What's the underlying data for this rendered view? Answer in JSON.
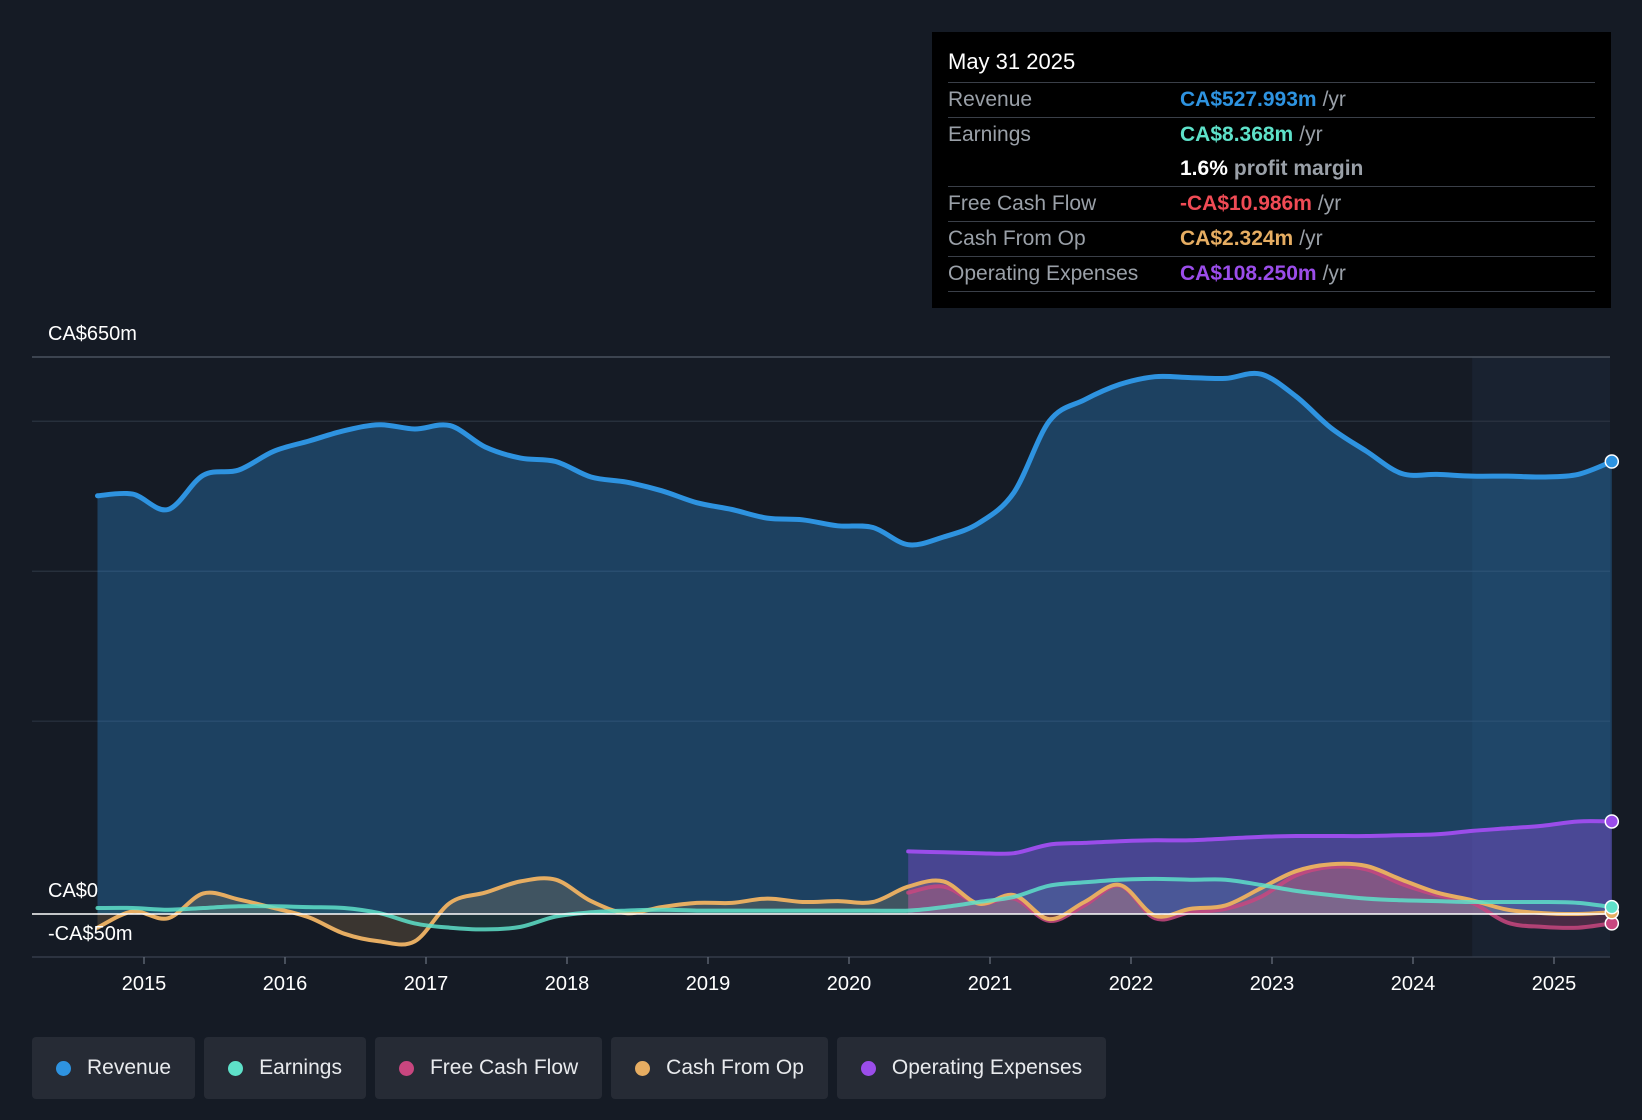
{
  "colors": {
    "revenue": "#2e93e0",
    "earnings": "#5ee1c9",
    "free_cash_flow": "#c8467f",
    "cash_from_op": "#e6ad62",
    "operating_expenses": "#9b4dea",
    "profit_margin_value": "#ffffff",
    "fcf_negative": "#f04b55"
  },
  "tooltip": {
    "date": "May 31 2025",
    "rows": [
      {
        "label": "Revenue",
        "value": "CA$527.993m",
        "unit": "/yr"
      },
      {
        "label": "Earnings",
        "value": "CA$8.368m",
        "unit": "/yr"
      },
      {
        "label": "",
        "value": "1.6%",
        "unit": "profit margin"
      },
      {
        "label": "Free Cash Flow",
        "value": "-CA$10.986m",
        "unit": "/yr"
      },
      {
        "label": "Cash From Op",
        "value": "CA$2.324m",
        "unit": "/yr"
      },
      {
        "label": "Operating Expenses",
        "value": "CA$108.250m",
        "unit": "/yr"
      }
    ]
  },
  "legend": [
    {
      "label": "Revenue"
    },
    {
      "label": "Earnings"
    },
    {
      "label": "Free Cash Flow"
    },
    {
      "label": "Cash From Op"
    },
    {
      "label": "Operating Expenses"
    }
  ],
  "chart_data": {
    "type": "area",
    "title": "",
    "y_top_label": "CA$650m",
    "y_zero_label": "CA$0",
    "y_bottom_label": "-CA$50m",
    "ylim": [
      -50,
      650
    ],
    "xlim": [
      2014.35,
      2025.4
    ],
    "forecast_start": 2024.42,
    "x_ticks": [
      2015,
      2016,
      2017,
      2018,
      2019,
      2020,
      2021,
      2022,
      2023,
      2024,
      2025
    ],
    "x_tick_labels": [
      "2015",
      "2016",
      "2017",
      "2018",
      "2019",
      "2020",
      "2021",
      "2022",
      "2023",
      "2024",
      "2025"
    ],
    "series": [
      {
        "name": "Revenue",
        "points": [
          [
            2014.67,
            488
          ],
          [
            2014.92,
            490
          ],
          [
            2015.17,
            472
          ],
          [
            2015.42,
            512
          ],
          [
            2015.67,
            518
          ],
          [
            2015.92,
            540
          ],
          [
            2016.17,
            552
          ],
          [
            2016.42,
            564
          ],
          [
            2016.67,
            571
          ],
          [
            2016.92,
            566
          ],
          [
            2017.17,
            570
          ],
          [
            2017.42,
            545
          ],
          [
            2017.67,
            532
          ],
          [
            2017.92,
            528
          ],
          [
            2018.17,
            510
          ],
          [
            2018.42,
            504
          ],
          [
            2018.67,
            494
          ],
          [
            2018.92,
            480
          ],
          [
            2019.17,
            472
          ],
          [
            2019.42,
            462
          ],
          [
            2019.67,
            460
          ],
          [
            2019.92,
            453
          ],
          [
            2020.17,
            451
          ],
          [
            2020.42,
            431
          ],
          [
            2020.67,
            440
          ],
          [
            2020.92,
            456
          ],
          [
            2021.17,
            492
          ],
          [
            2021.42,
            575
          ],
          [
            2021.67,
            600
          ],
          [
            2021.92,
            618
          ],
          [
            2022.17,
            627
          ],
          [
            2022.42,
            626
          ],
          [
            2022.67,
            625
          ],
          [
            2022.92,
            630
          ],
          [
            2023.17,
            604
          ],
          [
            2023.42,
            567
          ],
          [
            2023.67,
            540
          ],
          [
            2023.92,
            514
          ],
          [
            2024.17,
            513
          ],
          [
            2024.42,
            511
          ],
          [
            2024.67,
            511
          ],
          [
            2024.92,
            510
          ],
          [
            2025.17,
            513
          ],
          [
            2025.41,
            528
          ]
        ]
      },
      {
        "name": "Earnings",
        "points": [
          [
            2014.67,
            7
          ],
          [
            2014.92,
            7
          ],
          [
            2015.17,
            5
          ],
          [
            2015.42,
            7
          ],
          [
            2015.67,
            9
          ],
          [
            2015.92,
            9
          ],
          [
            2016.17,
            8
          ],
          [
            2016.42,
            7
          ],
          [
            2016.67,
            1
          ],
          [
            2016.92,
            -11
          ],
          [
            2017.17,
            -16
          ],
          [
            2017.42,
            -18
          ],
          [
            2017.67,
            -15
          ],
          [
            2017.92,
            -3
          ],
          [
            2018.17,
            2
          ],
          [
            2018.42,
            4
          ],
          [
            2018.67,
            5
          ],
          [
            2018.92,
            4
          ],
          [
            2019.17,
            4
          ],
          [
            2019.42,
            4
          ],
          [
            2019.67,
            4
          ],
          [
            2019.92,
            4
          ],
          [
            2020.17,
            4
          ],
          [
            2020.42,
            4
          ],
          [
            2020.67,
            8
          ],
          [
            2020.92,
            14
          ],
          [
            2021.17,
            20
          ],
          [
            2021.42,
            33
          ],
          [
            2021.67,
            37
          ],
          [
            2021.92,
            40
          ],
          [
            2022.17,
            41
          ],
          [
            2022.42,
            40
          ],
          [
            2022.67,
            40
          ],
          [
            2022.92,
            34
          ],
          [
            2023.17,
            27
          ],
          [
            2023.42,
            22
          ],
          [
            2023.67,
            18
          ],
          [
            2023.92,
            16
          ],
          [
            2024.17,
            15
          ],
          [
            2024.42,
            14
          ],
          [
            2024.67,
            14
          ],
          [
            2024.92,
            14
          ],
          [
            2025.17,
            13
          ],
          [
            2025.41,
            8
          ]
        ]
      },
      {
        "name": "Free Cash Flow",
        "points": [
          [
            2020.42,
            25
          ],
          [
            2020.67,
            32
          ],
          [
            2020.92,
            12
          ],
          [
            2021.17,
            18
          ],
          [
            2021.42,
            -8
          ],
          [
            2021.67,
            10
          ],
          [
            2021.92,
            33
          ],
          [
            2022.17,
            -5
          ],
          [
            2022.42,
            2
          ],
          [
            2022.67,
            6
          ],
          [
            2022.92,
            20
          ],
          [
            2023.17,
            45
          ],
          [
            2023.42,
            55
          ],
          [
            2023.67,
            52
          ],
          [
            2023.92,
            35
          ],
          [
            2024.17,
            22
          ],
          [
            2024.42,
            13
          ],
          [
            2024.67,
            -10
          ],
          [
            2024.92,
            -15
          ],
          [
            2025.17,
            -16
          ],
          [
            2025.41,
            -11
          ]
        ]
      },
      {
        "name": "Cash From Op",
        "points": [
          [
            2014.67,
            -16
          ],
          [
            2014.92,
            3
          ],
          [
            2015.17,
            -5
          ],
          [
            2015.42,
            24
          ],
          [
            2015.67,
            17
          ],
          [
            2015.92,
            7
          ],
          [
            2016.17,
            -4
          ],
          [
            2016.42,
            -23
          ],
          [
            2016.67,
            -32
          ],
          [
            2016.92,
            -32
          ],
          [
            2017.17,
            13
          ],
          [
            2017.42,
            25
          ],
          [
            2017.67,
            38
          ],
          [
            2017.92,
            40
          ],
          [
            2018.17,
            15
          ],
          [
            2018.42,
            1
          ],
          [
            2018.67,
            8
          ],
          [
            2018.92,
            13
          ],
          [
            2019.17,
            13
          ],
          [
            2019.42,
            18
          ],
          [
            2019.67,
            14
          ],
          [
            2019.92,
            15
          ],
          [
            2020.17,
            14
          ],
          [
            2020.42,
            32
          ],
          [
            2020.67,
            38
          ],
          [
            2020.92,
            12
          ],
          [
            2021.17,
            22
          ],
          [
            2021.42,
            -6
          ],
          [
            2021.67,
            14
          ],
          [
            2021.92,
            34
          ],
          [
            2022.17,
            -2
          ],
          [
            2022.42,
            6
          ],
          [
            2022.67,
            10
          ],
          [
            2022.92,
            30
          ],
          [
            2023.17,
            50
          ],
          [
            2023.42,
            58
          ],
          [
            2023.67,
            56
          ],
          [
            2023.92,
            40
          ],
          [
            2024.17,
            25
          ],
          [
            2024.42,
            16
          ],
          [
            2024.67,
            5
          ],
          [
            2024.92,
            1
          ],
          [
            2025.17,
            0
          ],
          [
            2025.41,
            2
          ]
        ]
      },
      {
        "name": "Operating Expenses",
        "points": [
          [
            2020.42,
            73
          ],
          [
            2020.67,
            72
          ],
          [
            2020.92,
            71
          ],
          [
            2021.17,
            71
          ],
          [
            2021.42,
            81
          ],
          [
            2021.67,
            83
          ],
          [
            2021.92,
            85
          ],
          [
            2022.17,
            86
          ],
          [
            2022.42,
            86
          ],
          [
            2022.67,
            88
          ],
          [
            2022.92,
            90
          ],
          [
            2023.17,
            91
          ],
          [
            2023.42,
            91
          ],
          [
            2023.67,
            91
          ],
          [
            2023.92,
            92
          ],
          [
            2024.17,
            93
          ],
          [
            2024.42,
            97
          ],
          [
            2024.67,
            100
          ],
          [
            2024.92,
            103
          ],
          [
            2025.17,
            108
          ],
          [
            2025.41,
            108
          ]
        ]
      }
    ]
  }
}
